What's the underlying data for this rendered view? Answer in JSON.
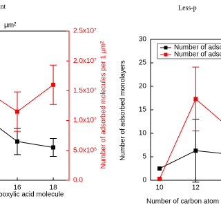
{
  "chart_data": [
    {
      "type": "line",
      "title": "ant",
      "note": "μm²",
      "xlabel": "boxylic acid molecule",
      "y2label": "Number of adsorbed molecules per 1 μm²",
      "x": [
        14,
        16,
        18
      ],
      "xlim": [
        15.04,
        18.88
      ],
      "xticks": [
        16,
        18
      ],
      "y2lim": [
        0,
        25000000
      ],
      "y2ticks": [
        {
          "value": 0,
          "label": "0.0"
        },
        {
          "value": 5000000,
          "label": "5.0x10⁶"
        },
        {
          "value": 10000000,
          "label": "1.0x10⁷"
        },
        {
          "value": 15000000,
          "label": "1.5x10⁷"
        },
        {
          "value": 20000000,
          "label": "2.0x10⁷"
        },
        {
          "value": 25000000,
          "label": "2.5x10⁷"
        }
      ],
      "series": [
        {
          "color": "#000000",
          "axis": "y2",
          "values": [
            11000000,
            6500000,
            5500000
          ],
          "errors": [
            null,
            2200000,
            1500000
          ]
        },
        {
          "color": "#ff0000",
          "axis": "y2",
          "values": [
            15500000,
            11500000,
            16000000
          ],
          "errors": [
            null,
            3300000,
            3300000
          ]
        }
      ]
    },
    {
      "type": "line",
      "title": "Less-p",
      "xlabel": "Number of carbon atom",
      "ylabel": "Number of adsorbed monolayers",
      "x": [
        10,
        12,
        14
      ],
      "xlim": [
        9.5,
        13.4
      ],
      "xticks": [
        10,
        12
      ],
      "ylim": [
        0,
        30
      ],
      "yticks": [
        0,
        5,
        10,
        15,
        20,
        25,
        30
      ],
      "series": [
        {
          "name": "Number of adsorbed monol",
          "color": "#000000",
          "values": [
            2.5,
            6.3,
            5.5
          ],
          "errors": [
            null,
            6.7,
            null
          ]
        },
        {
          "name": "Number of adsorbed molecule",
          "color": "#ff0000",
          "values": [
            0.3,
            17.3,
            10.7
          ],
          "errors": [
            null,
            6.8,
            null
          ]
        }
      ]
    }
  ]
}
